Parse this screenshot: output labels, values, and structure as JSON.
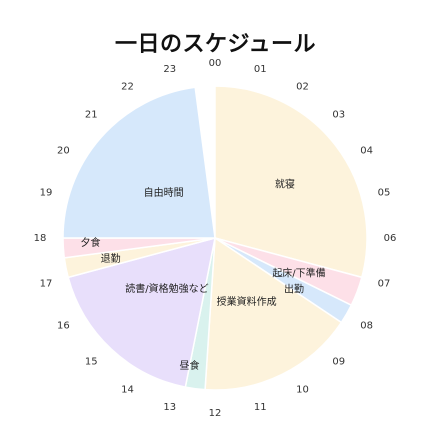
{
  "chart_data": {
    "type": "pie",
    "title": "一日のスケジュール",
    "hour_labels": [
      "00",
      "01",
      "02",
      "03",
      "04",
      "05",
      "06",
      "07",
      "08",
      "09",
      "10",
      "11",
      "12",
      "13",
      "14",
      "15",
      "16",
      "17",
      "18",
      "19",
      "20",
      "21",
      "22",
      "23"
    ],
    "slices": [
      {
        "label": "就寝",
        "start": 0,
        "end": 7,
        "color": "#fdf3dc"
      },
      {
        "label": "起床/下準備",
        "start": 7,
        "end": 7.75,
        "color": "#fde0e8"
      },
      {
        "label": "出勤",
        "start": 7.75,
        "end": 8.25,
        "color": "#d6e8fb"
      },
      {
        "label": "授業資料作成",
        "start": 8.25,
        "end": 12.25,
        "color": "#fdf3dc"
      },
      {
        "label": "昼食",
        "start": 12.25,
        "end": 12.75,
        "color": "#d9f2ee"
      },
      {
        "label": "読書/資格勉強など",
        "start": 12.75,
        "end": 17,
        "color": "#e8dffb"
      },
      {
        "label": "退勤",
        "start": 17,
        "end": 17.5,
        "color": "#fdf3dc"
      },
      {
        "label": "夕食",
        "start": 17.5,
        "end": 18,
        "color": "#fde0e8"
      },
      {
        "label": "自由時間",
        "start": 18,
        "end": 23.5,
        "color": "#d6e8fb"
      }
    ]
  }
}
